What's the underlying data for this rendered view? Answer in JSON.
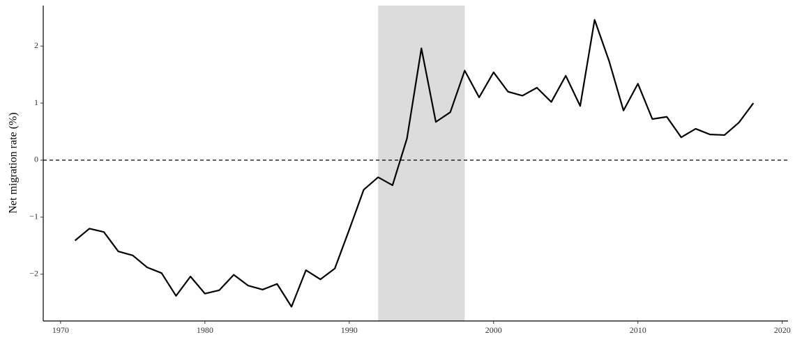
{
  "chart_data": {
    "type": "line",
    "y_label": "Net migration rate (%)",
    "x": [
      1971,
      1972,
      1973,
      1974,
      1975,
      1976,
      1977,
      1978,
      1979,
      1980,
      1981,
      1982,
      1983,
      1984,
      1985,
      1986,
      1987,
      1988,
      1989,
      1990,
      1991,
      1992,
      1993,
      1994,
      1995,
      1996,
      1997,
      1998,
      1999,
      2000,
      2001,
      2002,
      2003,
      2004,
      2005,
      2006,
      2007,
      2008,
      2009,
      2010,
      2011,
      2012,
      2013,
      2014,
      2015,
      2016,
      2017,
      2018
    ],
    "series": [
      {
        "color": "#000000",
        "values": [
          -1.41,
          -1.2,
          -1.26,
          -1.6,
          -1.67,
          -1.88,
          -1.98,
          -2.38,
          -2.04,
          -2.34,
          -2.28,
          -2.01,
          -2.2,
          -2.27,
          -2.17,
          -2.57,
          -1.93,
          -2.09,
          -1.9,
          -1.22,
          -0.52,
          -0.3,
          -0.44,
          0.38,
          1.96,
          0.67,
          0.84,
          1.57,
          1.1,
          1.54,
          1.2,
          1.13,
          1.27,
          1.02,
          1.48,
          0.95,
          2.46,
          1.74,
          0.87,
          1.34,
          0.72,
          0.76,
          0.4,
          0.55,
          0.45,
          0.44,
          0.66,
          1.0
        ]
      }
    ],
    "shade": [
      1992,
      1998
    ],
    "shade_color": "#dcdcdc",
    "hline": 0,
    "xlim": [
      1968.8,
      2020.4
    ],
    "xticks": [
      1970,
      1980,
      1990,
      2000,
      2010,
      2020
    ],
    "ylim": [
      -2.82,
      2.71
    ],
    "yticks": [
      {
        "value": -2,
        "label": "−2"
      },
      {
        "value": -1,
        "label": "−1"
      },
      0,
      1,
      2
    ]
  }
}
